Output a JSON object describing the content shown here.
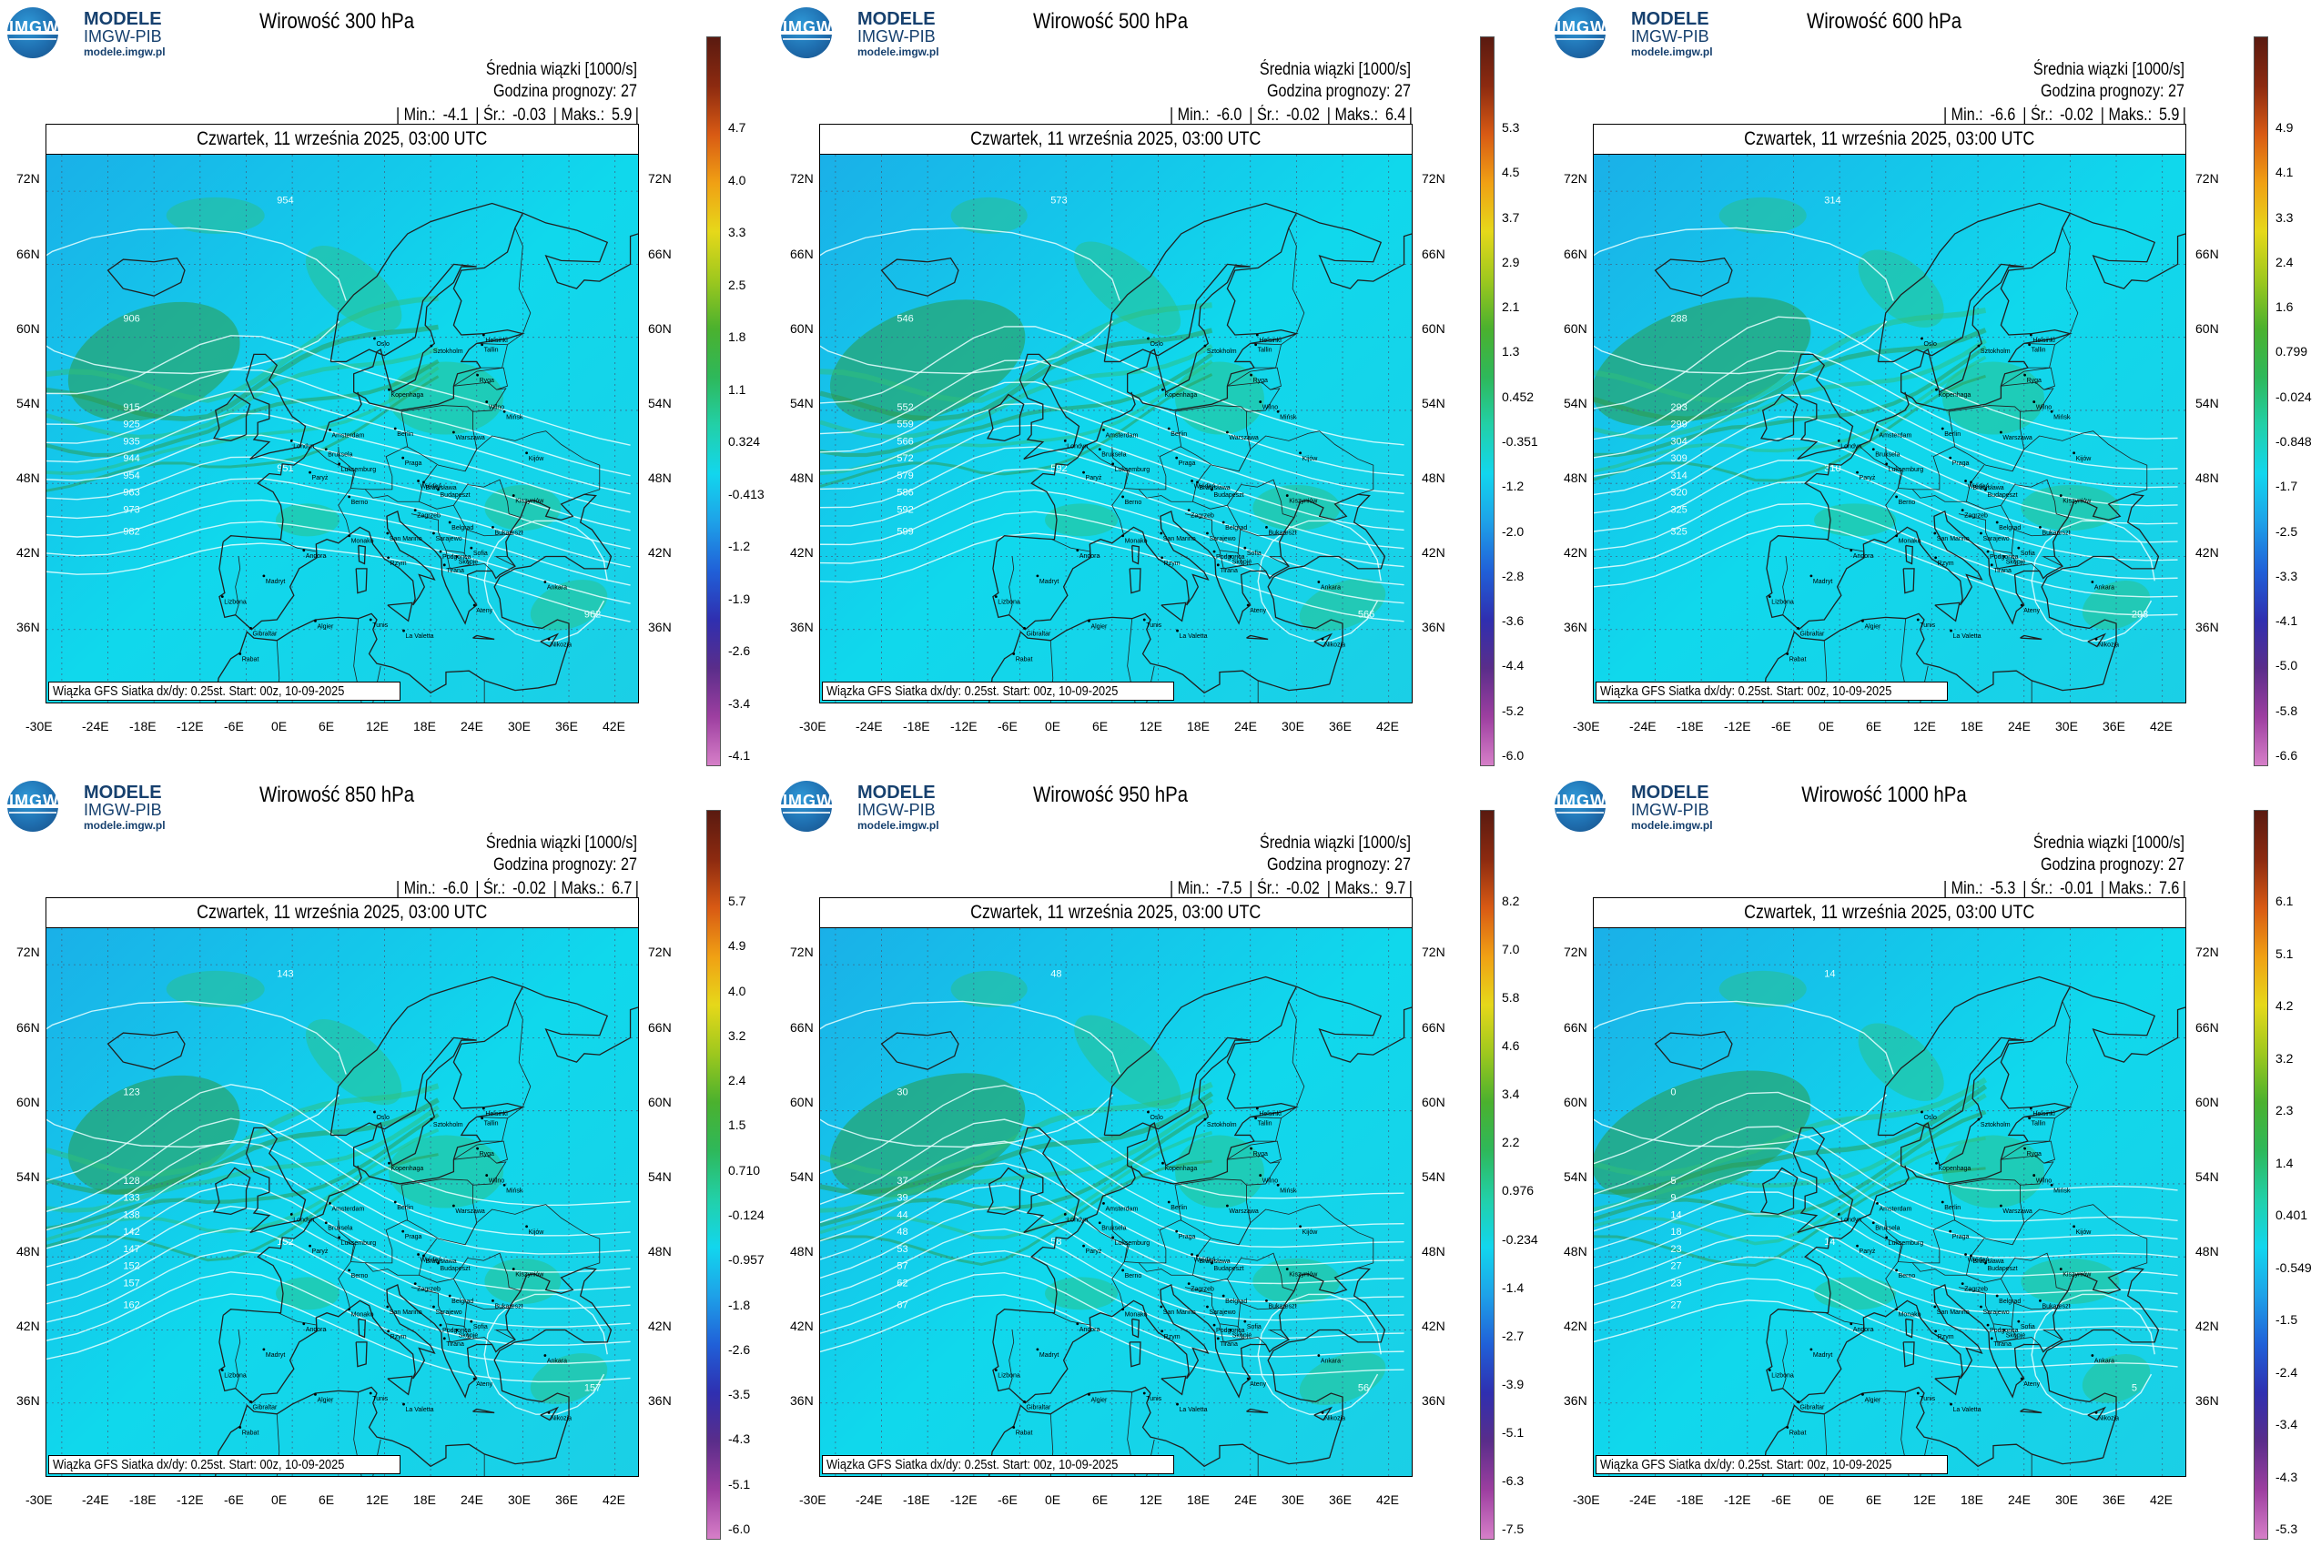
{
  "logo": {
    "letters": "IMGW",
    "line1": "MODELE",
    "line2": "IMGW-PIB",
    "line3": "modele.imgw.pl"
  },
  "common": {
    "subtitle": "Średnia wiązki [1000/s]",
    "forecast_hour": "Godzina prognozy: 27",
    "date": "Czwartek, 11 września 2025, 03:00 UTC",
    "credit": "Wiązka GFS Siatka dx/dy: 0.25st. Start: 00z, 10-09-2025",
    "min_label": "| Min.:",
    "avg_label": "| Śr.:",
    "max_label": "| Maks.:",
    "lat_labels": [
      "72N",
      "66N",
      "60N",
      "54N",
      "48N",
      "42N",
      "36N"
    ],
    "lon_labels": [
      "-30E",
      "-24E",
      "-18E",
      "-12E",
      "-6E",
      "0E",
      "6E",
      "12E",
      "18E",
      "24E",
      "30E",
      "36E",
      "42E"
    ],
    "cities": [
      "Oslo",
      "Sztokholm",
      "Helsinki",
      "Tallin",
      "Ryga",
      "Wilno",
      "Mińsk",
      "Kopenhaga",
      "Berlin",
      "Amsterdam",
      "Londyn",
      "Bruksela",
      "Paryż",
      "Luksemburg",
      "Praga",
      "Warszawa",
      "Kijów",
      "Wiedeń",
      "Berno",
      "Bratysława",
      "Budapeszt",
      "Kiszyniów",
      "Zagrzeb",
      "Belgrad",
      "Bukareszt",
      "Sarajewo",
      "Podgorica",
      "Sofia",
      "Skopje",
      "Tirana",
      "Rzym",
      "San Marino",
      "Monako",
      "Andora",
      "Madryt",
      "Lizbona",
      "Ankara",
      "Ateny",
      "Tunis",
      "Algier",
      "Gibraltar",
      "Rabat",
      "La Valetta",
      "Nikozja"
    ]
  },
  "panels": [
    {
      "title": "Wirowość 300 hPa",
      "min": "-4.1",
      "avg": "-0.03",
      "max": "5.9",
      "scale": [
        "4.7",
        "4.0",
        "3.3",
        "2.5",
        "1.8",
        "1.1",
        "0.324",
        "-0.413",
        "-1.2",
        "-1.9",
        "-2.6",
        "-3.4",
        "-4.1"
      ],
      "contours": [
        "954",
        "906",
        "915",
        "925",
        "935",
        "944",
        "954",
        "963",
        "973",
        "982",
        "951",
        "962"
      ]
    },
    {
      "title": "Wirowość 500 hPa",
      "min": "-6.0",
      "avg": "-0.02",
      "max": "6.4",
      "scale": [
        "5.3",
        "4.5",
        "3.7",
        "2.9",
        "2.1",
        "1.3",
        "0.452",
        "-0.351",
        "-1.2",
        "-2.0",
        "-2.8",
        "-3.6",
        "-4.4",
        "-5.2",
        "-6.0"
      ],
      "contours": [
        "573",
        "546",
        "552",
        "559",
        "566",
        "572",
        "579",
        "586",
        "592",
        "599",
        "592",
        "566"
      ]
    },
    {
      "title": "Wirowość 600 hPa",
      "min": "-6.6",
      "avg": "-0.02",
      "max": "5.9",
      "scale": [
        "4.9",
        "4.1",
        "3.3",
        "2.4",
        "1.6",
        "0.799",
        "-0.024",
        "-0.848",
        "-1.7",
        "-2.5",
        "-3.3",
        "-4.1",
        "-5.0",
        "-5.8",
        "-6.6"
      ],
      "contours": [
        "314",
        "288",
        "293",
        "299",
        "304",
        "309",
        "314",
        "320",
        "325",
        "325",
        "310",
        "293"
      ]
    },
    {
      "title": "Wirowość 850 hPa",
      "min": "-6.0",
      "avg": "-0.02",
      "max": "6.7",
      "scale": [
        "5.7",
        "4.9",
        "4.0",
        "3.2",
        "2.4",
        "1.5",
        "0.710",
        "-0.124",
        "-0.957",
        "-1.8",
        "-2.6",
        "-3.5",
        "-4.3",
        "-5.1",
        "-6.0"
      ],
      "contours": [
        "143",
        "123",
        "128",
        "133",
        "138",
        "142",
        "147",
        "152",
        "157",
        "162",
        "152",
        "157"
      ]
    },
    {
      "title": "Wirowość 950 hPa",
      "min": "-7.5",
      "avg": "-0.02",
      "max": "9.7",
      "scale": [
        "8.2",
        "7.0",
        "5.8",
        "4.6",
        "3.4",
        "2.2",
        "0.976",
        "-0.234",
        "-1.4",
        "-2.7",
        "-3.9",
        "-5.1",
        "-6.3",
        "-7.5"
      ],
      "contours": [
        "48",
        "30",
        "37",
        "39",
        "44",
        "48",
        "53",
        "57",
        "62",
        "67",
        "58",
        "56"
      ]
    },
    {
      "title": "Wirowość 1000 hPa",
      "min": "-5.3",
      "avg": "-0.01",
      "max": "7.6",
      "scale": [
        "6.1",
        "5.1",
        "4.2",
        "3.2",
        "2.3",
        "1.4",
        "0.401",
        "-0.549",
        "-1.5",
        "-2.4",
        "-3.4",
        "-4.3",
        "-5.3"
      ],
      "contours": [
        "14",
        "0",
        "5",
        "9",
        "14",
        "18",
        "23",
        "27",
        "23",
        "27",
        "14",
        "5"
      ]
    }
  ],
  "colors": {
    "field_base": "#10d8ec",
    "field_low": "#1ab0e8",
    "field_high": "#2fbf7a",
    "field_dark": "#2e9a48",
    "contour": "#eaffff",
    "coast": "#202020",
    "colorbar": [
      "#d67fc8",
      "#9d3fa0",
      "#5a2d8a",
      "#2f2fb0",
      "#2060d8",
      "#1ea0e8",
      "#12d6ee",
      "#22d0a8",
      "#2eb85a",
      "#4bb12e",
      "#9ec81e",
      "#e6d81a",
      "#f0a014",
      "#d85a14",
      "#8c2a10",
      "#5a1a10"
    ]
  }
}
